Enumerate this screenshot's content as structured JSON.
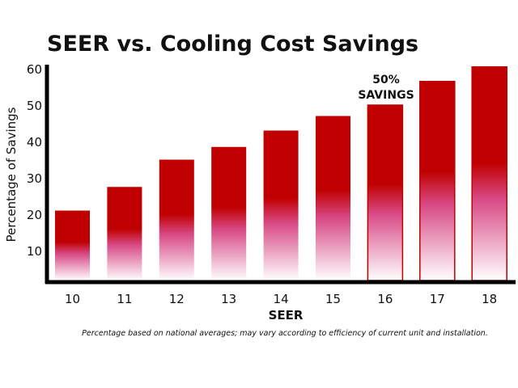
{
  "chart_data": {
    "type": "bar",
    "title": "SEER vs. Cooling Cost Savings",
    "xlabel": "SEER",
    "ylabel": "Percentage of Savings",
    "categories": [
      "10",
      "11",
      "12",
      "13",
      "14",
      "15",
      "16",
      "17",
      "18"
    ],
    "values": [
      21,
      27.5,
      35,
      38.5,
      43,
      47,
      50,
      56.5,
      60.5
    ],
    "yticks": [
      "10",
      "20",
      "30",
      "40",
      "50",
      "60"
    ],
    "ylim": [
      0,
      62
    ],
    "grid": false,
    "annotation": {
      "line1": "50%",
      "line2": "SAVINGS",
      "category": "16"
    },
    "footnote": "Percentage based on national averages; may vary according to efficiency of current unit and installation.",
    "colors": {
      "bar_top": "#c00000",
      "bar_bottom": "#ffffff",
      "bar_mid": "#dd4488",
      "axis": "#000000"
    }
  }
}
